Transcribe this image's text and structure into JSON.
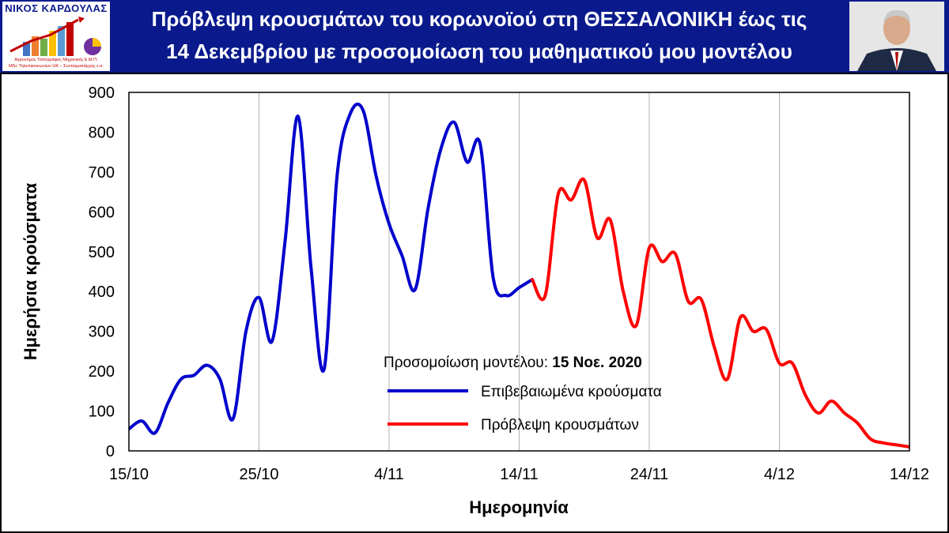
{
  "header": {
    "logo_name": "ΝΙΚΟΣ ΚΑΡΔΟΥΛΑΣ",
    "logo_sub1": "Αγρονόμος Τοπογράφος Μηχανικός Ε.Μ.Π.",
    "logo_sub2": "MSc Τηλεπικοινωνιών UK – Συνταγματάρχης ε.α.",
    "title_line1": "Πρόβλεψη κρουσμάτων του κορωνοϊού στη ΘΕΣΣΑΛΟΝΙΚΗ έως τις",
    "title_line2": "14 Δεκεμβρίου με προσομοίωση του μαθηματικού μου μοντέλου",
    "colors": {
      "banner": "#0a1a8c",
      "logo_name": "#0a1a8c",
      "logo_sub": "#c00000"
    }
  },
  "chart_data": {
    "type": "line",
    "xlabel": "Ημερομηνία",
    "ylabel": "Ημερήσια κρούσματα",
    "ylim": [
      0,
      900
    ],
    "xlim": [
      "2020-10-15",
      "2020-12-14"
    ],
    "y_ticks": [
      "0",
      "100",
      "200",
      "300",
      "400",
      "500",
      "600",
      "700",
      "800",
      "900"
    ],
    "x_ticks": [
      {
        "date": "2020-10-15",
        "label": "15/10"
      },
      {
        "date": "2020-10-25",
        "label": "25/10"
      },
      {
        "date": "2020-11-04",
        "label": "4/11"
      },
      {
        "date": "2020-11-14",
        "label": "14/11"
      },
      {
        "date": "2020-11-24",
        "label": "24/11"
      },
      {
        "date": "2020-12-04",
        "label": "4/12"
      },
      {
        "date": "2020-12-14",
        "label": "14/12"
      }
    ],
    "grid": "vertical",
    "legend_position": "center-right",
    "annotation": {
      "prefix": "Προσομοίωση μοντέλου: ",
      "bold": "15 Νοε. 2020"
    },
    "series": [
      {
        "name": "Επιβεβαιωμένα κρούσματα",
        "color": "#0000cc",
        "x": [
          "2020-10-15",
          "2020-10-16",
          "2020-10-17",
          "2020-10-18",
          "2020-10-19",
          "2020-10-20",
          "2020-10-21",
          "2020-10-22",
          "2020-10-23",
          "2020-10-24",
          "2020-10-25",
          "2020-10-26",
          "2020-10-27",
          "2020-10-28",
          "2020-10-29",
          "2020-10-30",
          "2020-10-31",
          "2020-11-01",
          "2020-11-02",
          "2020-11-03",
          "2020-11-04",
          "2020-11-05",
          "2020-11-06",
          "2020-11-07",
          "2020-11-08",
          "2020-11-09",
          "2020-11-10",
          "2020-11-11",
          "2020-11-12",
          "2020-11-13",
          "2020-11-14",
          "2020-11-15"
        ],
        "y": [
          55,
          75,
          45,
          120,
          180,
          190,
          215,
          180,
          80,
          300,
          385,
          275,
          525,
          840,
          460,
          205,
          690,
          845,
          855,
          690,
          570,
          490,
          405,
          610,
          760,
          825,
          725,
          770,
          435,
          390,
          410,
          430
        ]
      },
      {
        "name": "Πρόβλεψη κρουσμάτων",
        "color": "#ff0000",
        "x": [
          "2020-11-15",
          "2020-11-16",
          "2020-11-17",
          "2020-11-18",
          "2020-11-19",
          "2020-11-20",
          "2020-11-21",
          "2020-11-22",
          "2020-11-23",
          "2020-11-24",
          "2020-11-25",
          "2020-11-26",
          "2020-11-27",
          "2020-11-28",
          "2020-11-29",
          "2020-11-30",
          "2020-12-01",
          "2020-12-02",
          "2020-12-03",
          "2020-12-04",
          "2020-12-05",
          "2020-12-06",
          "2020-12-07",
          "2020-12-08",
          "2020-12-09",
          "2020-12-10",
          "2020-12-11",
          "2020-12-12",
          "2020-12-13",
          "2020-12-14"
        ],
        "y": [
          430,
          390,
          645,
          630,
          680,
          535,
          580,
          400,
          315,
          510,
          475,
          495,
          375,
          380,
          260,
          180,
          335,
          300,
          305,
          220,
          220,
          140,
          95,
          125,
          95,
          70,
          30,
          20,
          15,
          10
        ]
      }
    ]
  }
}
